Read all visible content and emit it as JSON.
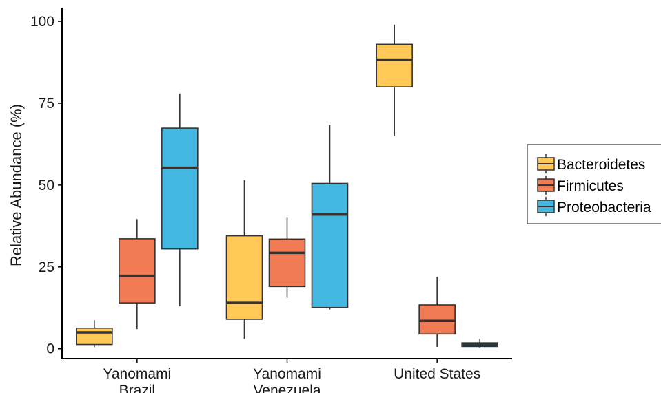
{
  "chart_data": {
    "type": "boxplot",
    "ylabel": "Relative Abundance (%)",
    "xlabel": "",
    "ylim": [
      -3,
      104
    ],
    "yticks": [
      0,
      25,
      50,
      75,
      100
    ],
    "grid": false,
    "legend_position": "right",
    "categories": [
      [
        "Yanomami",
        "Brazil"
      ],
      [
        "Yanomami",
        "Venezuela"
      ],
      [
        "United States"
      ]
    ],
    "series": [
      {
        "name": "Bacteroidetes",
        "color": "#FFC857",
        "boxes": [
          {
            "min": 0.5,
            "q1": 1.3,
            "median": 5.0,
            "q3": 6.3,
            "max": 8.7
          },
          {
            "min": 3.0,
            "q1": 9.0,
            "median": 14.0,
            "q3": 34.5,
            "max": 51.5
          },
          {
            "min": 65.0,
            "q1": 80.0,
            "median": 88.3,
            "q3": 93.0,
            "max": 99.0
          }
        ]
      },
      {
        "name": "Firmicutes",
        "color": "#F07B54",
        "boxes": [
          {
            "min": 6.0,
            "q1": 14.0,
            "median": 22.3,
            "q3": 33.6,
            "max": 39.6
          },
          {
            "min": 15.6,
            "q1": 19.0,
            "median": 29.3,
            "q3": 33.5,
            "max": 40.0
          },
          {
            "min": 0.6,
            "q1": 4.5,
            "median": 8.5,
            "q3": 13.4,
            "max": 22.0
          }
        ]
      },
      {
        "name": "Proteobacteria",
        "color": "#44B7E0",
        "boxes": [
          {
            "min": 13.0,
            "q1": 30.5,
            "median": 55.3,
            "q3": 67.4,
            "max": 78.0
          },
          {
            "min": 12.0,
            "q1": 12.6,
            "median": 41.0,
            "q3": 50.5,
            "max": 68.3
          },
          {
            "min": 0.3,
            "q1": 0.7,
            "median": 1.3,
            "q3": 1.8,
            "max": 3.0
          }
        ]
      }
    ]
  }
}
